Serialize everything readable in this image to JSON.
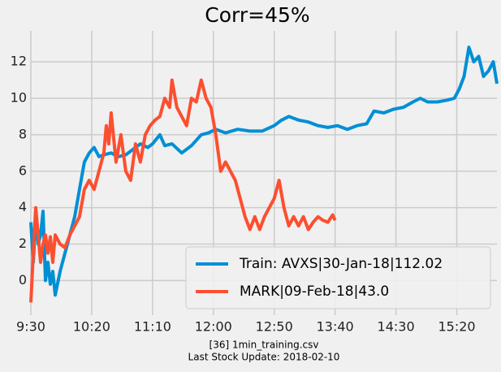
{
  "chart_data": {
    "type": "line",
    "title": "Corr=45%",
    "footer": [
      "[36] 1min_training.csv",
      "Last Stock Update: 2018-02-10"
    ],
    "xlim": [
      0,
      383
    ],
    "xticks": [
      {
        "value": 0,
        "label": "9:30"
      },
      {
        "value": 50,
        "label": "10:20"
      },
      {
        "value": 100,
        "label": "11:10"
      },
      {
        "value": 150,
        "label": "12:00"
      },
      {
        "value": 200,
        "label": "12:50"
      },
      {
        "value": 250,
        "label": "13:40"
      },
      {
        "value": 300,
        "label": "14:30"
      },
      {
        "value": 350,
        "label": "15:20"
      }
    ],
    "ylim": [
      -1.9,
      13.7
    ],
    "yticks": [
      0,
      2,
      4,
      6,
      8,
      10,
      12
    ],
    "grid": true,
    "legend": "lower right",
    "series": [
      {
        "name": "Train: AVXS|30-Jan-18|112.02",
        "color": "#008fd5",
        "x": [
          0,
          2,
          4,
          6,
          8,
          10,
          12,
          14,
          16,
          18,
          20,
          24,
          28,
          32,
          36,
          40,
          44,
          48,
          52,
          56,
          60,
          66,
          72,
          78,
          84,
          90,
          96,
          100,
          106,
          110,
          116,
          124,
          132,
          140,
          146,
          152,
          160,
          170,
          180,
          190,
          200,
          206,
          212,
          220,
          228,
          236,
          244,
          252,
          260,
          268,
          276,
          282,
          290,
          298,
          306,
          314,
          320,
          326,
          334,
          342,
          348,
          352,
          356,
          360,
          364,
          368,
          372,
          376,
          380,
          383
        ],
        "values": [
          3.2,
          1.0,
          3.5,
          2.0,
          2.5,
          3.8,
          0.0,
          1.0,
          -0.2,
          0.5,
          -0.8,
          0.5,
          1.5,
          2.5,
          3.5,
          5.0,
          6.5,
          7.0,
          7.3,
          6.8,
          6.9,
          7.0,
          6.8,
          6.9,
          7.2,
          7.5,
          7.3,
          7.5,
          8.0,
          7.4,
          7.5,
          7.0,
          7.4,
          8.0,
          8.1,
          8.3,
          8.1,
          8.3,
          8.2,
          8.2,
          8.5,
          8.8,
          9.0,
          8.8,
          8.7,
          8.5,
          8.4,
          8.5,
          8.3,
          8.5,
          8.6,
          9.3,
          9.2,
          9.4,
          9.5,
          9.8,
          10.0,
          9.8,
          9.8,
          9.9,
          10.0,
          10.5,
          11.2,
          12.8,
          12.0,
          12.3,
          11.2,
          11.5,
          12.0,
          10.8
        ]
      },
      {
        "name": "MARK|09-Feb-18|43.0",
        "color": "#fc4f30",
        "x": [
          0,
          2,
          4,
          6,
          8,
          10,
          12,
          14,
          16,
          18,
          20,
          24,
          28,
          32,
          36,
          40,
          44,
          48,
          52,
          56,
          60,
          62,
          64,
          66,
          70,
          74,
          78,
          82,
          86,
          90,
          94,
          98,
          102,
          106,
          110,
          114,
          116,
          120,
          124,
          128,
          132,
          136,
          140,
          144,
          148,
          152,
          156,
          160,
          164,
          168,
          172,
          176,
          180,
          184,
          188,
          192,
          196,
          200,
          204,
          208,
          212,
          216,
          220,
          224,
          228,
          232,
          236,
          240,
          244,
          248,
          250
        ],
        "values": [
          -1.2,
          1.5,
          4.0,
          2.5,
          1.0,
          2.0,
          2.5,
          1.5,
          2.4,
          1.0,
          2.5,
          2.0,
          1.8,
          2.5,
          3.0,
          3.5,
          5.0,
          5.5,
          5.0,
          6.0,
          7.0,
          8.5,
          7.5,
          9.2,
          6.5,
          8.0,
          6.0,
          5.5,
          7.5,
          6.5,
          8.0,
          8.5,
          8.8,
          9.0,
          10.0,
          9.5,
          11.0,
          9.5,
          9.0,
          8.5,
          10.0,
          9.8,
          11.0,
          10.0,
          9.5,
          8.0,
          6.0,
          6.5,
          6.0,
          5.5,
          4.5,
          3.5,
          2.8,
          3.5,
          2.8,
          3.5,
          4.0,
          4.5,
          5.5,
          4.0,
          3.0,
          3.5,
          3.0,
          3.5,
          2.8,
          3.2,
          3.5,
          3.3,
          3.2,
          3.6,
          3.3
        ]
      }
    ]
  }
}
